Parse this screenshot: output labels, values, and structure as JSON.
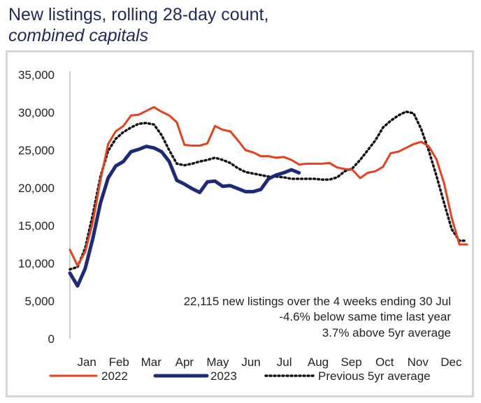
{
  "title_line1": "New listings, rolling 28-day count,",
  "title_line2": "combined capitals",
  "colors": {
    "2022": "#e8401c",
    "2023": "#1e2a78",
    "avg": "#111111",
    "title": "#1f2a5a"
  },
  "chart_data": {
    "type": "line",
    "title": "New listings, rolling 28-day count, combined capitals",
    "xlabel": "",
    "ylabel": "",
    "ylim": [
      0,
      35000
    ],
    "yticks": [
      "35,000",
      "30,000",
      "25,000",
      "20,000",
      "15,000",
      "10,000",
      "5,000",
      "0"
    ],
    "ytick_values": [
      35000,
      30000,
      25000,
      20000,
      15000,
      10000,
      5000,
      0
    ],
    "months": [
      "Jan",
      "Feb",
      "Mar",
      "Apr",
      "May",
      "Jun",
      "Jul",
      "Aug",
      "Sep",
      "Oct",
      "Nov",
      "Dec"
    ],
    "grid": false,
    "legend_placement": "bottom",
    "annotations": [
      "22,115 new listings over the 4 weeks ending 30 Jul",
      "-4.6% below same time last year",
      "3.7% above 5yr average"
    ],
    "series": [
      {
        "name": "2022",
        "x": [
          1,
          8,
          15,
          22,
          29,
          36,
          43,
          50,
          57,
          64,
          71,
          78,
          85,
          92,
          99,
          106,
          113,
          120,
          127,
          134,
          141,
          148,
          155,
          162,
          169,
          176,
          183,
          190,
          197,
          204,
          211,
          218,
          225,
          232,
          239,
          246,
          253,
          260,
          267,
          274,
          281,
          288,
          295,
          302,
          309,
          316,
          323,
          330,
          337,
          344,
          351,
          358,
          365
        ],
        "values": [
          11800,
          9700,
          11500,
          15500,
          21000,
          25800,
          27500,
          28200,
          29600,
          29700,
          30200,
          30700,
          30100,
          29600,
          28700,
          25700,
          25600,
          25600,
          25900,
          28200,
          27700,
          27500,
          26300,
          25000,
          24700,
          24200,
          24200,
          24000,
          24100,
          23700,
          23100,
          23200,
          23200,
          23200,
          23300,
          22700,
          22500,
          22400,
          21300,
          22000,
          22200,
          22800,
          24600,
          24800,
          25300,
          25800,
          26100,
          25500,
          23800,
          20600,
          16000,
          12500,
          12500
        ]
      },
      {
        "name": "2023",
        "x": [
          1,
          8,
          15,
          22,
          29,
          36,
          43,
          50,
          57,
          64,
          71,
          78,
          85,
          92,
          99,
          106,
          113,
          120,
          127,
          134,
          141,
          148,
          155,
          162,
          169,
          176,
          183,
          190,
          197,
          204,
          211
        ],
        "values": [
          8700,
          7000,
          9300,
          13300,
          18000,
          21300,
          22900,
          23500,
          24800,
          25100,
          25500,
          25300,
          24800,
          23500,
          21000,
          20500,
          19900,
          19400,
          20800,
          20900,
          20200,
          20300,
          19900,
          19500,
          19500,
          19800,
          21200,
          21700,
          22000,
          22400,
          22000
        ]
      },
      {
        "name": "Previous 5yr average",
        "x": [
          1,
          8,
          15,
          22,
          29,
          36,
          43,
          50,
          57,
          64,
          71,
          78,
          85,
          92,
          99,
          106,
          113,
          120,
          127,
          134,
          141,
          148,
          155,
          162,
          169,
          176,
          183,
          190,
          197,
          204,
          211,
          218,
          225,
          232,
          239,
          246,
          253,
          260,
          267,
          274,
          281,
          288,
          295,
          302,
          309,
          316,
          323,
          330,
          337,
          344,
          351,
          358,
          365
        ],
        "values": [
          9200,
          9500,
          12000,
          16500,
          21500,
          24900,
          26500,
          27400,
          28000,
          28500,
          28600,
          28400,
          27000,
          25000,
          23200,
          23000,
          23200,
          23500,
          23700,
          24000,
          23700,
          23300,
          22600,
          22100,
          21900,
          21700,
          21500,
          21500,
          21400,
          21200,
          21200,
          21200,
          21200,
          21100,
          21100,
          21400,
          22200,
          22600,
          23700,
          25000,
          26300,
          28000,
          28900,
          29600,
          30100,
          29900,
          27800,
          24900,
          21600,
          18000,
          14500,
          13000,
          13000
        ]
      }
    ]
  }
}
